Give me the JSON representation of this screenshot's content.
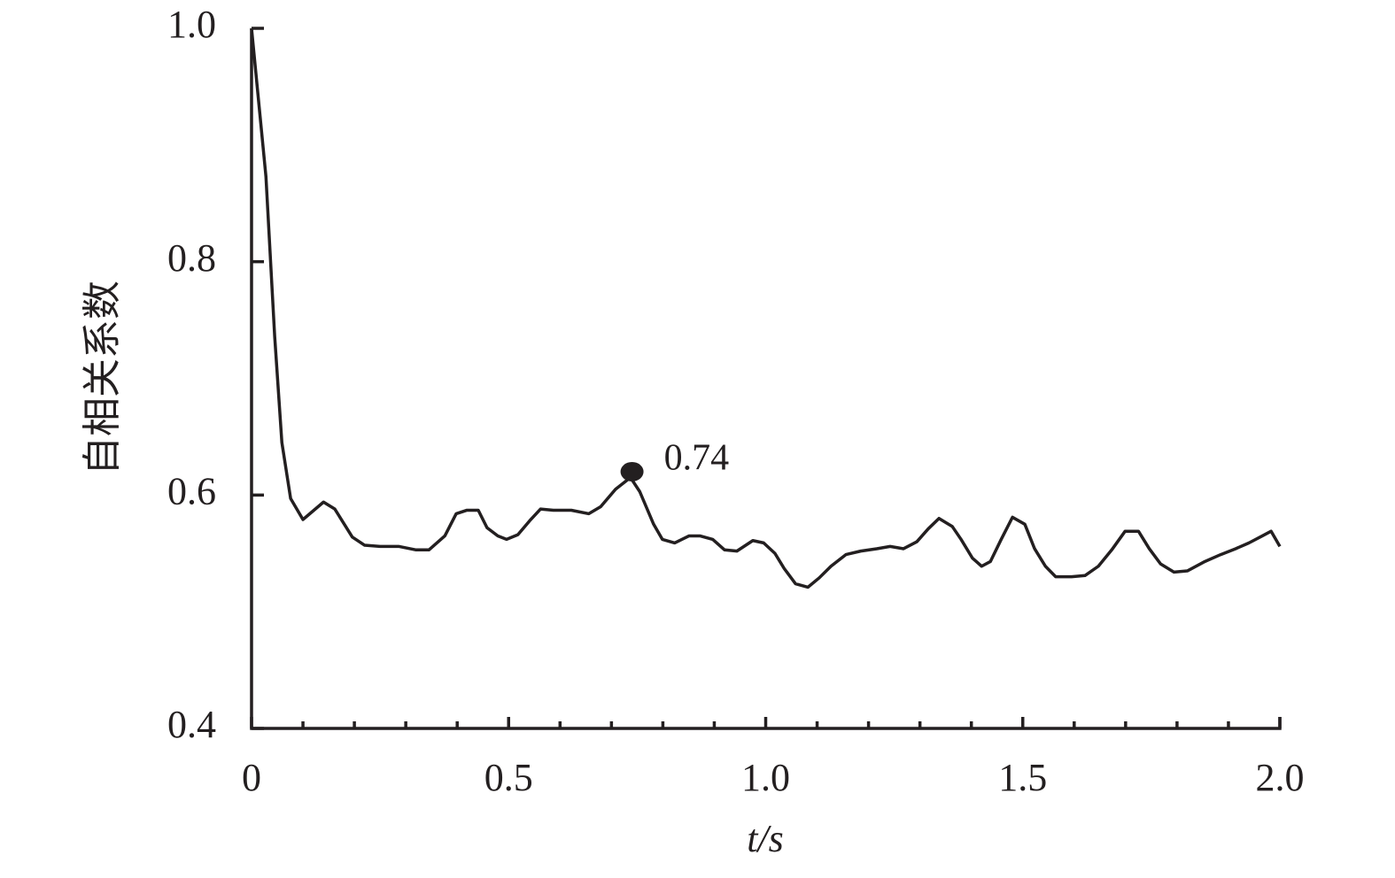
{
  "chart_data": {
    "type": "line",
    "y_label": "自相关系数",
    "x_label": "t/s",
    "x": [
      0,
      0.028,
      0.045,
      0.059,
      0.076,
      0.1,
      0.14,
      0.162,
      0.196,
      0.22,
      0.25,
      0.286,
      0.32,
      0.345,
      0.376,
      0.398,
      0.419,
      0.441,
      0.458,
      0.479,
      0.496,
      0.518,
      0.541,
      0.562,
      0.587,
      0.622,
      0.656,
      0.679,
      0.708,
      0.737,
      0.755,
      0.782,
      0.799,
      0.823,
      0.851,
      0.872,
      0.897,
      0.92,
      0.944,
      0.975,
      0.996,
      1.018,
      1.036,
      1.058,
      1.082,
      1.104,
      1.127,
      1.156,
      1.185,
      1.216,
      1.242,
      1.268,
      1.294,
      1.316,
      1.337,
      1.363,
      1.38,
      1.402,
      1.42,
      1.437,
      1.458,
      1.48,
      1.504,
      1.523,
      1.544,
      1.564,
      1.595,
      1.621,
      1.647,
      1.673,
      1.699,
      1.725,
      1.746,
      1.768,
      1.794,
      1.82,
      1.854,
      1.885,
      1.914,
      1.94,
      1.966,
      1.983,
      2.0
    ],
    "values": [
      1.0,
      0.873,
      0.736,
      0.645,
      0.597,
      0.579,
      0.594,
      0.588,
      0.564,
      0.557,
      0.556,
      0.556,
      0.553,
      0.553,
      0.565,
      0.584,
      0.587,
      0.587,
      0.572,
      0.565,
      0.562,
      0.566,
      0.578,
      0.588,
      0.587,
      0.587,
      0.584,
      0.59,
      0.605,
      0.615,
      0.603,
      0.575,
      0.562,
      0.559,
      0.565,
      0.565,
      0.562,
      0.553,
      0.552,
      0.561,
      0.559,
      0.55,
      0.537,
      0.524,
      0.521,
      0.529,
      0.539,
      0.549,
      0.552,
      0.554,
      0.556,
      0.554,
      0.56,
      0.571,
      0.58,
      0.573,
      0.562,
      0.546,
      0.539,
      0.543,
      0.562,
      0.581,
      0.575,
      0.554,
      0.539,
      0.53,
      0.53,
      0.531,
      0.539,
      0.553,
      0.569,
      0.569,
      0.554,
      0.541,
      0.534,
      0.535,
      0.543,
      0.549,
      0.554,
      0.559,
      0.565,
      0.569,
      0.556
    ],
    "color": "#231f20",
    "xlim": [
      0,
      2.0
    ],
    "ylim": [
      0.4,
      1.0
    ],
    "xticks": [
      0,
      0.5,
      {
        "value": 1,
        "label": "1.0"
      },
      1.5,
      {
        "value": 2,
        "label": "2.0"
      }
    ],
    "xminorticks": [
      0.1,
      0.2,
      0.3,
      0.4,
      0.6,
      0.7,
      0.8,
      0.9,
      1.1,
      1.2,
      1.3,
      1.4,
      1.6,
      1.7,
      1.8,
      1.9
    ],
    "yticks": [
      0.4,
      0.6,
      0.8,
      {
        "value": 1,
        "label": "1.0"
      }
    ],
    "annotation": {
      "x": 0.74,
      "y": 0.62,
      "label": "0.74"
    }
  }
}
